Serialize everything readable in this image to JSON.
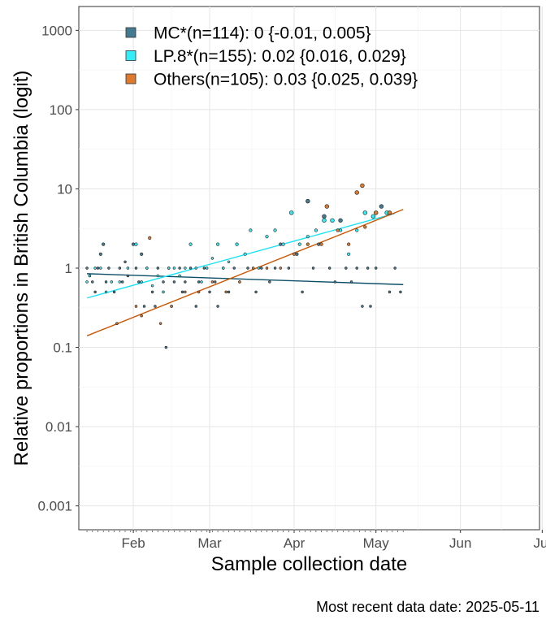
{
  "caption": "Most recent data date: 2025-05-11",
  "chart_data": {
    "type": "scatter",
    "xlabel": "Sample collection date",
    "ylabel": "Relative proportions in British Columbia (logit)",
    "x_type": "date",
    "xlim": [
      "2025-01-12",
      "2025-06-30"
    ],
    "ylim": [
      0.0005,
      2000
    ],
    "y_scale": "log",
    "y_ticks": [
      0.001,
      0.01,
      0.1,
      1,
      10,
      100,
      1000
    ],
    "y_tick_labels": [
      "0.001",
      "0.01",
      "0.1",
      "1",
      "10",
      "100",
      "1000"
    ],
    "x_ticks": [
      "2025-02-01",
      "2025-03-01",
      "2025-04-01",
      "2025-05-01",
      "2025-06-01",
      "2025-07-01"
    ],
    "x_tick_labels": [
      "Feb",
      "Mar",
      "Apr",
      "May",
      "Jun",
      "Jul"
    ],
    "grid": true,
    "legend_position": "top-left",
    "series": [
      {
        "name": "MC*(n=114): 0 {-0.01, 0.005}",
        "color": "#457b8f",
        "line_color": "#0b4e66",
        "fit_line": [
          [
            "2025-01-15",
            0.85
          ],
          [
            "2025-05-11",
            0.62
          ]
        ],
        "points": [
          [
            "2025-01-15",
            1
          ],
          [
            "2025-01-16",
            0.8
          ],
          [
            "2025-01-17",
            0.67
          ],
          [
            "2025-01-18",
            0.5
          ],
          [
            "2025-01-19",
            1
          ],
          [
            "2025-01-20",
            1.5
          ],
          [
            "2025-01-21",
            2
          ],
          [
            "2025-01-22",
            0.67
          ],
          [
            "2025-01-23",
            1
          ],
          [
            "2025-01-25",
            0.5
          ],
          [
            "2025-01-26",
            0.2
          ],
          [
            "2025-01-27",
            1
          ],
          [
            "2025-01-28",
            0.67
          ],
          [
            "2025-01-29",
            1.2
          ],
          [
            "2025-01-30",
            0.8
          ],
          [
            "2025-02-01",
            2
          ],
          [
            "2025-02-02",
            1
          ],
          [
            "2025-02-03",
            0.67
          ],
          [
            "2025-02-04",
            1.5
          ],
          [
            "2025-02-05",
            0.33
          ],
          [
            "2025-02-06",
            1
          ],
          [
            "2025-02-08",
            0.5
          ],
          [
            "2025-02-09",
            0.33
          ],
          [
            "2025-02-10",
            1
          ],
          [
            "2025-02-12",
            0.67
          ],
          [
            "2025-02-13",
            0.1
          ],
          [
            "2025-02-14",
            1
          ],
          [
            "2025-02-15",
            0.33
          ],
          [
            "2025-02-16",
            0.67
          ],
          [
            "2025-02-18",
            1
          ],
          [
            "2025-02-19",
            0.5
          ],
          [
            "2025-02-20",
            0.67
          ],
          [
            "2025-02-22",
            1
          ],
          [
            "2025-02-24",
            0.33
          ],
          [
            "2025-02-25",
            0.67
          ],
          [
            "2025-02-27",
            1
          ],
          [
            "2025-03-01",
            0.5
          ],
          [
            "2025-03-03",
            0.67
          ],
          [
            "2025-03-04",
            0.33
          ],
          [
            "2025-03-06",
            1
          ],
          [
            "2025-03-08",
            0.5
          ],
          [
            "2025-03-10",
            1
          ],
          [
            "2025-03-12",
            0.67
          ],
          [
            "2025-03-15",
            1
          ],
          [
            "2025-03-18",
            0.5
          ],
          [
            "2025-03-20",
            1
          ],
          [
            "2025-03-23",
            0.67
          ],
          [
            "2025-03-25",
            1
          ],
          [
            "2025-03-27",
            2
          ],
          [
            "2025-03-30",
            1
          ],
          [
            "2025-04-02",
            1.5
          ],
          [
            "2025-04-04",
            0.5
          ],
          [
            "2025-04-06",
            7
          ],
          [
            "2025-04-08",
            1
          ],
          [
            "2025-04-10",
            2
          ],
          [
            "2025-04-12",
            4.5
          ],
          [
            "2025-04-14",
            1
          ],
          [
            "2025-04-16",
            0.67
          ],
          [
            "2025-04-18",
            4
          ],
          [
            "2025-04-20",
            1
          ],
          [
            "2025-04-22",
            0.67
          ],
          [
            "2025-04-24",
            1
          ],
          [
            "2025-04-26",
            0.33
          ],
          [
            "2025-04-28",
            1
          ],
          [
            "2025-04-29",
            0.33
          ],
          [
            "2025-05-01",
            1
          ],
          [
            "2025-05-03",
            6
          ],
          [
            "2025-05-06",
            0.5
          ],
          [
            "2025-05-08",
            1
          ],
          [
            "2025-05-10",
            0.5
          ]
        ]
      },
      {
        "name": "LP.8*(n=155): 0.02 {0.016, 0.029}",
        "color": "#33eef8",
        "line_color": "#1ae3f5",
        "fit_line": [
          [
            "2025-01-15",
            0.42
          ],
          [
            "2025-05-08",
            4.9
          ]
        ],
        "points": [
          [
            "2025-01-15",
            0.67
          ],
          [
            "2025-01-16",
            0.8
          ],
          [
            "2025-01-18",
            1
          ],
          [
            "2025-01-20",
            1
          ],
          [
            "2025-01-22",
            0.5
          ],
          [
            "2025-01-24",
            0.67
          ],
          [
            "2025-01-27",
            0.67
          ],
          [
            "2025-01-30",
            1
          ],
          [
            "2025-02-02",
            2
          ],
          [
            "2025-02-04",
            0.67
          ],
          [
            "2025-02-06",
            1
          ],
          [
            "2025-02-08",
            0.6
          ],
          [
            "2025-02-10",
            0.8
          ],
          [
            "2025-02-12",
            0.5
          ],
          [
            "2025-02-14",
            1
          ],
          [
            "2025-02-16",
            1
          ],
          [
            "2025-02-18",
            0.8
          ],
          [
            "2025-02-20",
            1
          ],
          [
            "2025-02-22",
            2
          ],
          [
            "2025-02-24",
            1
          ],
          [
            "2025-02-26",
            0.67
          ],
          [
            "2025-02-28",
            1
          ],
          [
            "2025-03-02",
            1.33
          ],
          [
            "2025-03-04",
            2
          ],
          [
            "2025-03-06",
            1
          ],
          [
            "2025-03-08",
            1.2
          ],
          [
            "2025-03-11",
            2
          ],
          [
            "2025-03-14",
            1.5
          ],
          [
            "2025-03-16",
            3
          ],
          [
            "2025-03-19",
            1
          ],
          [
            "2025-03-22",
            2.5
          ],
          [
            "2025-03-25",
            3
          ],
          [
            "2025-03-28",
            2
          ],
          [
            "2025-03-31",
            5
          ],
          [
            "2025-04-03",
            2
          ],
          [
            "2025-04-06",
            2.5
          ],
          [
            "2025-04-09",
            3
          ],
          [
            "2025-04-12",
            4
          ],
          [
            "2025-04-15",
            4
          ],
          [
            "2025-04-18",
            3
          ],
          [
            "2025-04-21",
            1.5
          ],
          [
            "2025-04-24",
            3
          ],
          [
            "2025-04-27",
            5
          ],
          [
            "2025-04-30",
            4.5
          ],
          [
            "2025-05-05",
            5
          ]
        ]
      },
      {
        "name": "Others(n=105): 0.03 {0.025, 0.039}",
        "color": "#de7a2e",
        "line_color": "#cc5500",
        "fit_line": [
          [
            "2025-01-15",
            0.14
          ],
          [
            "2025-05-11",
            5.5
          ]
        ],
        "points": [
          [
            "2025-01-26",
            0.2
          ],
          [
            "2025-02-02",
            0.33
          ],
          [
            "2025-02-04",
            0.25
          ],
          [
            "2025-02-07",
            2.4
          ],
          [
            "2025-02-11",
            0.2
          ],
          [
            "2025-02-15",
            0.33
          ],
          [
            "2025-02-20",
            0.5
          ],
          [
            "2025-02-25",
            0.5
          ],
          [
            "2025-03-02",
            0.67
          ],
          [
            "2025-03-07",
            0.5
          ],
          [
            "2025-03-12",
            0.67
          ],
          [
            "2025-03-17",
            1
          ],
          [
            "2025-03-22",
            1
          ],
          [
            "2025-03-27",
            1
          ],
          [
            "2025-04-01",
            1.5
          ],
          [
            "2025-04-06",
            2
          ],
          [
            "2025-04-11",
            2
          ],
          [
            "2025-04-13",
            6
          ],
          [
            "2025-04-17",
            3
          ],
          [
            "2025-04-21",
            2
          ],
          [
            "2025-04-24",
            9
          ],
          [
            "2025-04-26",
            11
          ],
          [
            "2025-04-27",
            3.3
          ],
          [
            "2025-05-01",
            5
          ],
          [
            "2025-05-06",
            5
          ]
        ]
      }
    ]
  }
}
